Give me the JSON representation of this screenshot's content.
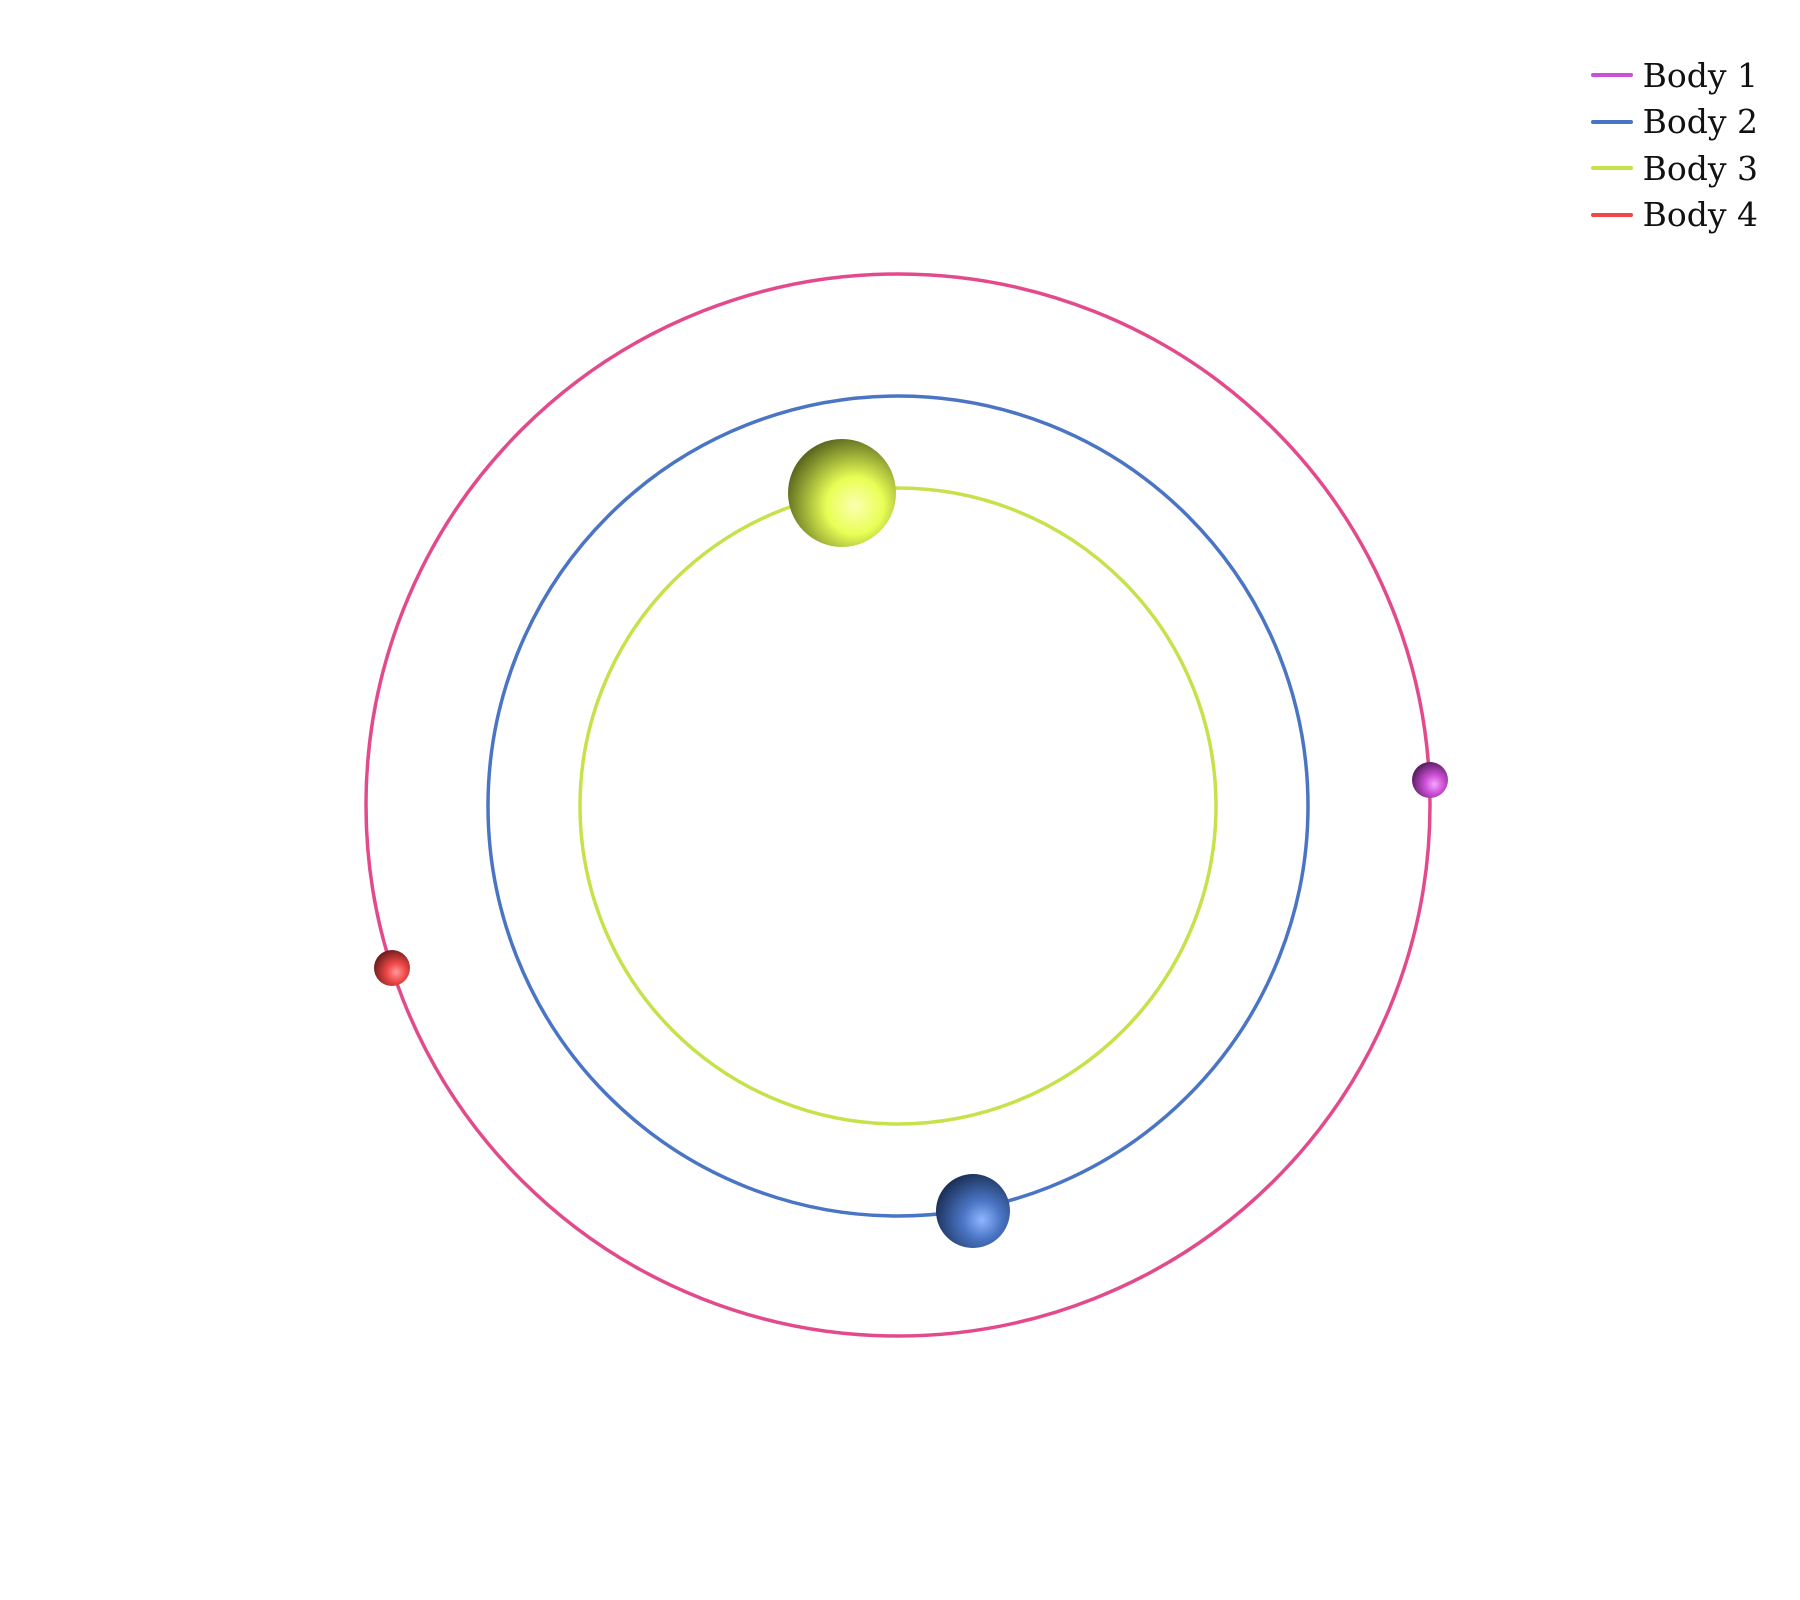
{
  "legend": {
    "items": [
      {
        "label": "Body 1",
        "color": "#cc4fd6"
      },
      {
        "label": "Body 2",
        "color": "#4a75c4"
      },
      {
        "label": "Body 3",
        "color": "#c6e24a"
      },
      {
        "label": "Body 4",
        "color": "#f04848"
      }
    ]
  },
  "orbits": [
    {
      "body": "Body 1",
      "color": "#e34a8c"
    },
    {
      "body": "Body 2",
      "color": "#4a75c4"
    },
    {
      "body": "Body 3",
      "color": "#c6e24a"
    }
  ],
  "bodies": [
    {
      "label": "Body 1",
      "color": "#cc4fd6"
    },
    {
      "label": "Body 2",
      "color": "#4a75c4"
    },
    {
      "label": "Body 3",
      "color": "#f0ff5a"
    },
    {
      "label": "Body 4",
      "color": "#f04848"
    }
  ]
}
